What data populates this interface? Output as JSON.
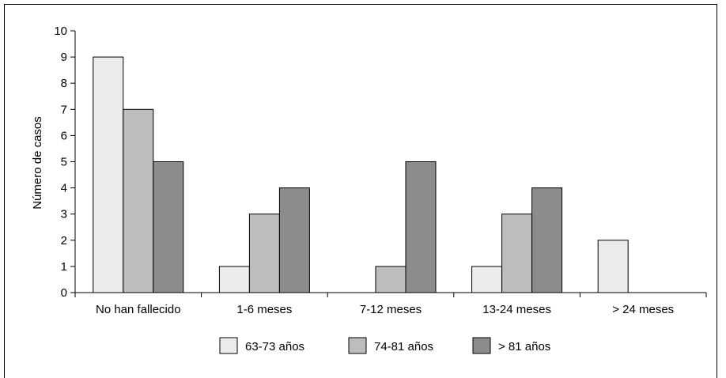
{
  "chart_data": {
    "type": "bar",
    "title": "",
    "xlabel": "",
    "ylabel": "Número de casos",
    "ylim": [
      0,
      10
    ],
    "yticks": [
      0,
      1,
      2,
      3,
      4,
      5,
      6,
      7,
      8,
      9,
      10
    ],
    "grid": false,
    "legend_position": "bottom",
    "categories": [
      "No han fallecido",
      "1-6 meses",
      "7-12 meses",
      "13-24 meses",
      "> 24 meses"
    ],
    "series": [
      {
        "name": "63-73 años",
        "color": "#ececec",
        "values": [
          9,
          1,
          0,
          1,
          2
        ]
      },
      {
        "name": "74-81 años",
        "color": "#bdbdbd",
        "values": [
          7,
          3,
          1,
          3,
          0
        ]
      },
      {
        "name": "> 81 años",
        "color": "#8c8c8c",
        "values": [
          5,
          4,
          5,
          4,
          0
        ]
      }
    ]
  }
}
